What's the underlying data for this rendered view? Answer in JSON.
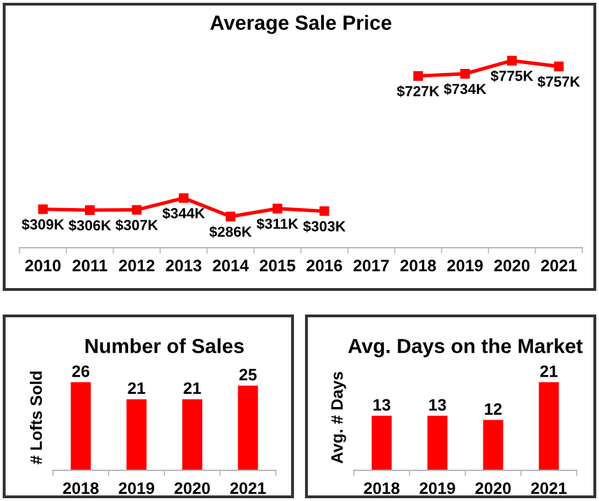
{
  "chart_data": [
    {
      "type": "line",
      "title": "Average Sale Price",
      "categories": [
        "2010",
        "2011",
        "2012",
        "2013",
        "2014",
        "2015",
        "2016",
        "2017",
        "2018",
        "2019",
        "2020",
        "2021"
      ],
      "series": [
        {
          "color": "#ff0000",
          "values": [
            309,
            306,
            307,
            344,
            286,
            311,
            303,
            null,
            727,
            734,
            775,
            757
          ],
          "value_labels": [
            "$309K",
            "$306K",
            "$307K",
            "$344K",
            "$286K",
            "$311K",
            "$303K",
            null,
            "$727K",
            "$734K",
            "$775K",
            "$757K"
          ]
        }
      ],
      "marker": "square",
      "line_style": "solid",
      "grid": false,
      "legend": false,
      "tick_labels": "x"
    },
    {
      "type": "bar",
      "title": "Number of Sales",
      "ylabel": "# Lofts Sold",
      "categories": [
        "2018",
        "2019",
        "2020",
        "2021"
      ],
      "values": [
        26,
        21,
        21,
        25
      ],
      "color": "#ff0000",
      "data_labels": true,
      "grid": false,
      "legend": false,
      "tick_labels": "x"
    },
    {
      "type": "bar",
      "title": "Avg. Days on the Market",
      "ylabel": "Avg. # Days",
      "categories": [
        "2018",
        "2019",
        "2020",
        "2021"
      ],
      "values": [
        13,
        13,
        12,
        21
      ],
      "color": "#ff0000",
      "data_labels": true,
      "grid": false,
      "legend": false,
      "tick_labels": "x"
    }
  ]
}
